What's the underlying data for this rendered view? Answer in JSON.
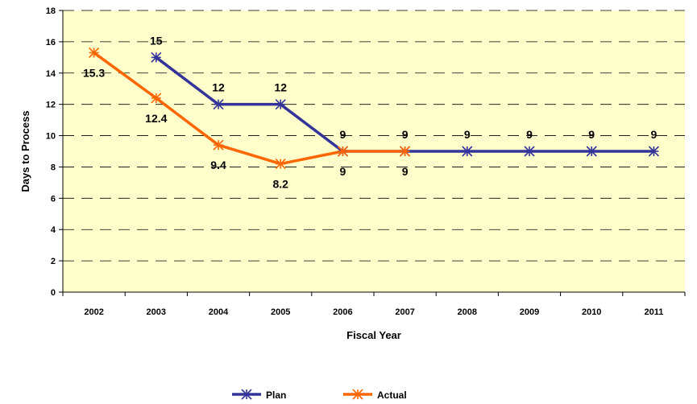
{
  "chart_data": {
    "type": "line",
    "title": "",
    "xlabel": "Fiscal Year",
    "ylabel": "Days to Process",
    "categories": [
      "2002",
      "2003",
      "2004",
      "2005",
      "2006",
      "2007",
      "2008",
      "2009",
      "2010",
      "2011"
    ],
    "ylim": [
      0,
      18
    ],
    "yticks": [
      0,
      2,
      4,
      6,
      8,
      10,
      12,
      14,
      16,
      18
    ],
    "grid": "horizontal dashed",
    "legend_position": "bottom",
    "plot_background": "#FFFFCC",
    "series": [
      {
        "name": "Plan",
        "color": "#333399",
        "values": [
          null,
          15,
          12,
          12,
          9,
          9,
          9,
          9,
          9,
          9
        ],
        "labels": [
          "",
          "15",
          "12",
          "12",
          "9",
          "9",
          "9",
          "9",
          "9",
          "9"
        ],
        "label_position": "above"
      },
      {
        "name": "Actual",
        "color": "#FF6600",
        "values": [
          15.3,
          12.4,
          9.4,
          8.2,
          9,
          9,
          null,
          null,
          null,
          null
        ],
        "labels": [
          "15.3",
          "12.4",
          "9.4",
          "8.2",
          "9",
          "9",
          "",
          "",
          "",
          ""
        ],
        "label_position": "below"
      }
    ]
  }
}
